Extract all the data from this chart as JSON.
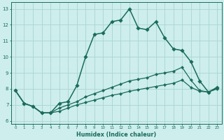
{
  "xlabel": "Humidex (Indice chaleur)",
  "xlim": [
    -0.5,
    23.5
  ],
  "ylim": [
    5.8,
    13.4
  ],
  "yticks": [
    6,
    7,
    8,
    9,
    10,
    11,
    12,
    13
  ],
  "xticks": [
    0,
    1,
    2,
    3,
    4,
    5,
    6,
    7,
    8,
    9,
    10,
    11,
    12,
    13,
    14,
    15,
    16,
    17,
    18,
    19,
    20,
    21,
    22,
    23
  ],
  "bg_color": "#cdeeed",
  "grid_color": "#aad4d0",
  "line_color": "#1a6b5a",
  "lines": [
    {
      "x": [
        0,
        1,
        2,
        3,
        4,
        5,
        6,
        7,
        8,
        9,
        10,
        11,
        12,
        13,
        14,
        15,
        16,
        17,
        18,
        19,
        20,
        21,
        22,
        23
      ],
      "y": [
        7.9,
        7.1,
        6.9,
        6.5,
        6.5,
        7.1,
        7.2,
        8.2,
        10.0,
        11.4,
        11.5,
        12.2,
        12.3,
        13.0,
        11.8,
        11.7,
        12.2,
        11.2,
        10.5,
        10.4,
        9.7,
        8.5,
        7.8,
        8.1
      ],
      "markersize": 2.8,
      "linewidth": 1.1
    },
    {
      "x": [
        0,
        1,
        2,
        3,
        4,
        5,
        6,
        7,
        8,
        9,
        10,
        11,
        12,
        13,
        14,
        15,
        16,
        17,
        18,
        19,
        20,
        21,
        22,
        23
      ],
      "y": [
        7.9,
        7.1,
        6.9,
        6.5,
        6.5,
        6.8,
        7.0,
        7.2,
        7.5,
        7.7,
        7.9,
        8.1,
        8.3,
        8.5,
        8.6,
        8.7,
        8.9,
        9.0,
        9.1,
        9.35,
        8.55,
        7.9,
        7.8,
        8.05
      ],
      "markersize": 2.2,
      "linewidth": 0.9
    },
    {
      "x": [
        0,
        1,
        2,
        3,
        4,
        5,
        6,
        7,
        8,
        9,
        10,
        11,
        12,
        13,
        14,
        15,
        16,
        17,
        18,
        19,
        20,
        21,
        22,
        23
      ],
      "y": [
        7.9,
        7.1,
        6.9,
        6.5,
        6.5,
        6.6,
        6.8,
        7.0,
        7.15,
        7.3,
        7.45,
        7.6,
        7.7,
        7.85,
        7.95,
        8.05,
        8.15,
        8.25,
        8.35,
        8.55,
        8.1,
        7.85,
        7.8,
        8.0
      ],
      "markersize": 2.2,
      "linewidth": 0.9
    }
  ]
}
